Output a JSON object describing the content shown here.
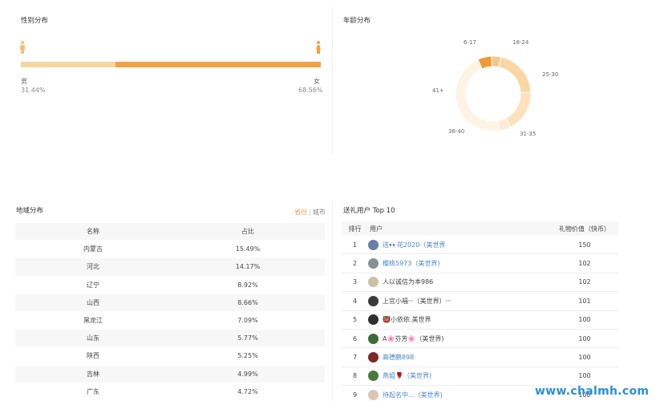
{
  "gender": {
    "title": "性别分布",
    "male_label": "男",
    "male_pct": "31.44%",
    "female_label": "女",
    "female_pct": "68.56%",
    "male_share": 0.3144
  },
  "age": {
    "title": "年龄分布",
    "chart_data": {
      "type": "pie",
      "categories": [
        "6-17",
        "18-24",
        "25-30",
        "31-35",
        "36-40",
        "41+"
      ],
      "values": [
        6,
        4,
        21,
        18,
        5,
        46
      ],
      "colors": [
        "#f09a36",
        "#f7c68c",
        "#fbd7a6",
        "#fde2bd",
        "#fdebd3",
        "#fef4e6"
      ]
    }
  },
  "region": {
    "title": "地域分布",
    "tab_province": "省份",
    "tab_city": "城市",
    "col_name": "名称",
    "col_share": "占比",
    "rows": [
      {
        "name": "内蒙古",
        "share": "15.49%"
      },
      {
        "name": "河北",
        "share": "14.17%"
      },
      {
        "name": "辽宁",
        "share": "8.92%"
      },
      {
        "name": "山西",
        "share": "8.66%"
      },
      {
        "name": "黑龙江",
        "share": "7.09%"
      },
      {
        "name": "山东",
        "share": "5.77%"
      },
      {
        "name": "陕西",
        "share": "5.25%"
      },
      {
        "name": "吉林",
        "share": "4.99%"
      },
      {
        "name": "广东",
        "share": "4.72%"
      }
    ]
  },
  "gifts": {
    "title": "送礼用户 Top 10",
    "col_rank": "排行",
    "col_user": "用户",
    "col_value": "礼物价值（快币）",
    "rows": [
      {
        "rank": "1",
        "user": "送👀花2020（美世界",
        "value": "150",
        "link": true,
        "avatar": "#6a7fa8"
      },
      {
        "rank": "2",
        "user": "樱桃5973（美世界)",
        "value": "102",
        "link": true,
        "avatar": "#8a8f96"
      },
      {
        "rank": "3",
        "user": "人以诚信为本986",
        "value": "102",
        "link": false,
        "avatar": "#c9c2a8"
      },
      {
        "rank": "4",
        "user": "上官小福ᵕᵕ（美世界）ᵕᵕ",
        "value": "101",
        "link": false,
        "avatar": "#3b3b3b"
      },
      {
        "rank": "5",
        "user": "👹小依依.美世界",
        "value": "100",
        "link": false,
        "avatar": "#2f2f2f"
      },
      {
        "rank": "6",
        "user": "A🌸芬芳🌸（美世界)",
        "value": "100",
        "link": false,
        "avatar": "#3d6b3a"
      },
      {
        "rank": "7",
        "user": "高德鹏898",
        "value": "100",
        "link": true,
        "avatar": "#7a2a2a"
      },
      {
        "rank": "8",
        "user": "燕姐🌹（美世界)",
        "value": "100",
        "link": true,
        "avatar": "#4a7a3a"
      },
      {
        "rank": "9",
        "user": "待起名中...（美世界)",
        "value": "100",
        "link": true,
        "avatar": "#d8c7b8"
      }
    ]
  },
  "watermark": "www.chalmh.com"
}
